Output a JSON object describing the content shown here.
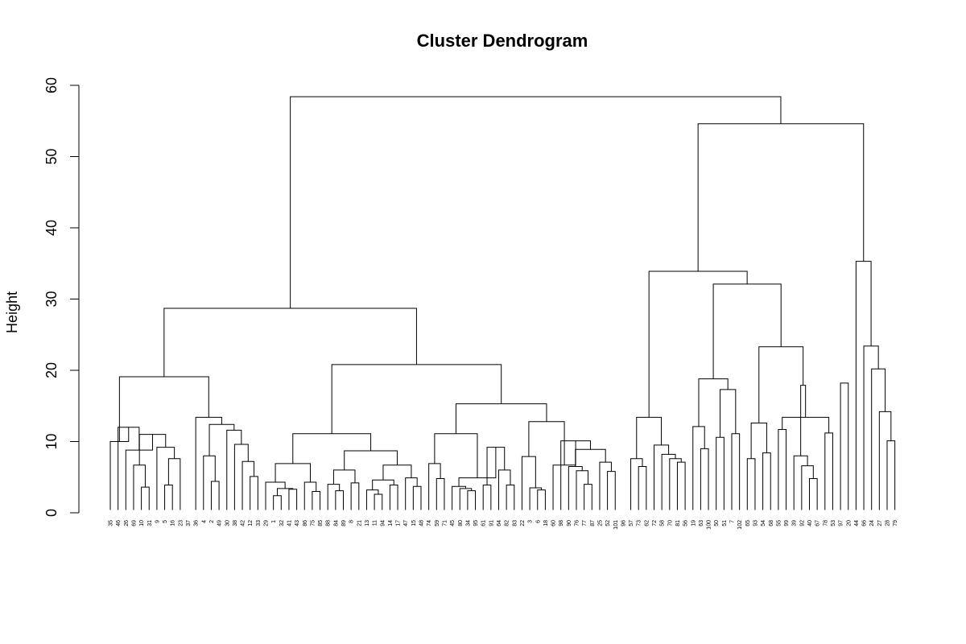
{
  "chart_data": {
    "type": "dendrogram",
    "title": "Cluster Dendrogram",
    "ylabel": "Height",
    "ylim": [
      0,
      60
    ],
    "yticks": [
      0,
      10,
      20,
      30,
      40,
      50,
      60
    ],
    "leaves": [
      "35",
      "46",
      "26",
      "69",
      "10",
      "31",
      "9",
      "5",
      "16",
      "23",
      "37",
      "36",
      "4",
      "2",
      "49",
      "30",
      "38",
      "42",
      "12",
      "33",
      "29",
      "1",
      "32",
      "41",
      "43",
      "86",
      "75",
      "85",
      "88",
      "84",
      "89",
      "8",
      "21",
      "13",
      "11",
      "94",
      "14",
      "17",
      "47",
      "15",
      "48",
      "74",
      "59",
      "71",
      "45",
      "80",
      "34",
      "95",
      "61",
      "91",
      "64",
      "82",
      "83",
      "22",
      "3",
      "6",
      "18",
      "60",
      "98",
      "90",
      "76",
      "77",
      "87",
      "25",
      "52",
      "101",
      "96",
      "57",
      "73",
      "62",
      "72",
      "58",
      "70",
      "81",
      "56",
      "19",
      "63",
      "100",
      "50",
      "51",
      "7",
      "102",
      "65",
      "93",
      "54",
      "68",
      "55",
      "99",
      "39",
      "92",
      "40",
      "67",
      "78",
      "53",
      "97",
      "20",
      "44",
      "66",
      "24",
      "27",
      "28",
      "79"
    ],
    "merges": [
      {
        "height": 3.6,
        "a": 4,
        "b": 5
      },
      {
        "height": 6.7,
        "a": 3,
        "b": "m0"
      },
      {
        "height": 3.9,
        "a": 7,
        "b": 8
      },
      {
        "height": 7.6,
        "a": "m2",
        "b": 9
      },
      {
        "height": 9.2,
        "a": 6,
        "b": "m3"
      },
      {
        "height": 11.0,
        "a": "m1",
        "b": "m4"
      },
      {
        "height": 8.8,
        "a": 2,
        "b": "m5"
      },
      {
        "height": 12.0,
        "a": 1,
        "b": "m6"
      },
      {
        "height": 10.0,
        "a": 0,
        "b": "m7"
      },
      {
        "height": 4.4,
        "a": 13,
        "b": 14
      },
      {
        "height": 8.0,
        "a": 12,
        "b": "m9"
      },
      {
        "height": 5.1,
        "a": 18,
        "b": 19
      },
      {
        "height": 7.2,
        "a": 17,
        "b": "m11"
      },
      {
        "height": 9.6,
        "a": 16,
        "b": "m12"
      },
      {
        "height": 11.6,
        "a": 15,
        "b": "m13"
      },
      {
        "height": 12.4,
        "a": "m10",
        "b": "m14"
      },
      {
        "height": 13.4,
        "a": 11,
        "b": "m15"
      },
      {
        "height": 19.1,
        "a": "m8",
        "b": "m16"
      },
      {
        "height": 2.4,
        "a": 21,
        "b": 22
      },
      {
        "height": 3.3,
        "a": 23,
        "b": 24
      },
      {
        "height": 3.4,
        "a": "m18",
        "b": "m19"
      },
      {
        "height": 4.3,
        "a": 20,
        "b": "m20"
      },
      {
        "height": 3.0,
        "a": 26,
        "b": 27
      },
      {
        "height": 4.3,
        "a": 25,
        "b": "m22"
      },
      {
        "height": 6.9,
        "a": "m21",
        "b": "m23"
      },
      {
        "height": 3.1,
        "a": 29,
        "b": 30
      },
      {
        "height": 4.0,
        "a": 28,
        "b": "m25"
      },
      {
        "height": 4.2,
        "a": 31,
        "b": 32
      },
      {
        "height": 6.0,
        "a": "m26",
        "b": "m27"
      },
      {
        "height": 2.6,
        "a": 34,
        "b": 35
      },
      {
        "height": 3.2,
        "a": 33,
        "b": "m29"
      },
      {
        "height": 3.9,
        "a": 36,
        "b": 37
      },
      {
        "height": 4.6,
        "a": "m30",
        "b": "m31"
      },
      {
        "height": 3.7,
        "a": 39,
        "b": 40
      },
      {
        "height": 4.9,
        "a": 38,
        "b": "m33"
      },
      {
        "height": 6.7,
        "a": "m32",
        "b": "m34"
      },
      {
        "height": 8.7,
        "a": "m28",
        "b": "m35"
      },
      {
        "height": 11.1,
        "a": "m24",
        "b": "m36"
      },
      {
        "height": 4.8,
        "a": 42,
        "b": 43
      },
      {
        "height": 6.9,
        "a": 41,
        "b": "m38"
      },
      {
        "height": 3.1,
        "a": 46,
        "b": 47
      },
      {
        "height": 3.4,
        "a": 45,
        "b": "m40"
      },
      {
        "height": 3.7,
        "a": 44,
        "b": "m41"
      },
      {
        "height": 3.9,
        "a": 48,
        "b": 49
      },
      {
        "height": 3.9,
        "a": 51,
        "b": 52
      },
      {
        "height": 6.0,
        "a": 50,
        "b": "m44"
      },
      {
        "height": 9.2,
        "a": "m43",
        "b": "m45"
      },
      {
        "height": 4.9,
        "a": "m42",
        "b": "m46"
      },
      {
        "height": 11.1,
        "a": "m39",
        "b": "m47"
      },
      {
        "height": 3.2,
        "a": 55,
        "b": 56
      },
      {
        "height": 3.5,
        "a": 54,
        "b": "m49"
      },
      {
        "height": 7.9,
        "a": 53,
        "b": "m50"
      },
      {
        "height": 4.0,
        "a": 61,
        "b": 62
      },
      {
        "height": 5.9,
        "a": 60,
        "b": "m52"
      },
      {
        "height": 6.5,
        "a": 59,
        "b": "m53"
      },
      {
        "height": 5.8,
        "a": 64,
        "b": 65
      },
      {
        "height": 7.1,
        "a": 63,
        "b": "m55"
      },
      {
        "height": 8.9,
        "a": "m54",
        "b": "m56"
      },
      {
        "height": 10.1,
        "a": 58,
        "b": "m57"
      },
      {
        "height": 6.7,
        "a": 57,
        "b": "m58"
      },
      {
        "height": 12.8,
        "a": "m51",
        "b": "m59"
      },
      {
        "height": 15.3,
        "a": "m48",
        "b": "m60"
      },
      {
        "height": 20.8,
        "a": "m37",
        "b": "m61"
      },
      {
        "height": 28.7,
        "a": "m17",
        "b": "m62"
      },
      {
        "height": 6.5,
        "a": 68,
        "b": 69
      },
      {
        "height": 7.6,
        "a": 67,
        "b": "m64"
      },
      {
        "height": 7.1,
        "a": 73,
        "b": 74
      },
      {
        "height": 7.6,
        "a": 72,
        "b": "m66"
      },
      {
        "height": 8.2,
        "a": 71,
        "b": "m67"
      },
      {
        "height": 9.5,
        "a": 70,
        "b": "m68"
      },
      {
        "height": 13.4,
        "a": "m65",
        "b": "m69"
      },
      {
        "height": 9.0,
        "a": 76,
        "b": 77
      },
      {
        "height": 12.1,
        "a": 75,
        "b": "m71"
      },
      {
        "height": 10.6,
        "a": 78,
        "b": 79
      },
      {
        "height": 11.1,
        "a": 80,
        "b": 81
      },
      {
        "height": 17.3,
        "a": "m73",
        "b": "m74"
      },
      {
        "height": 18.8,
        "a": "m72",
        "b": "m75"
      },
      {
        "height": 7.6,
        "a": 82,
        "b": 83
      },
      {
        "height": 8.4,
        "a": 84,
        "b": 85
      },
      {
        "height": 12.6,
        "a": "m77",
        "b": "m78"
      },
      {
        "height": 4.8,
        "a": 90,
        "b": 91
      },
      {
        "height": 6.6,
        "a": 89,
        "b": "m80"
      },
      {
        "height": 8.0,
        "a": 88,
        "b": "m81"
      },
      {
        "height": 11.7,
        "a": 86,
        "b": 87
      },
      {
        "height": 11.2,
        "a": 92,
        "b": 93
      },
      {
        "height": 13.4,
        "a": "m83",
        "b": "m84"
      },
      {
        "height": 17.9,
        "a": "m82",
        "b": "m85"
      },
      {
        "height": 23.3,
        "a": "m79",
        "b": "m86"
      },
      {
        "height": 32.1,
        "a": "m76",
        "b": "m87"
      },
      {
        "height": 33.9,
        "a": "m70",
        "b": "m88"
      },
      {
        "height": 10.1,
        "a": 100,
        "b": 101
      },
      {
        "height": 14.2,
        "a": 99,
        "b": "m90"
      },
      {
        "height": 20.2,
        "a": 98,
        "b": "m91"
      },
      {
        "height": 23.4,
        "a": 97,
        "b": "m92"
      },
      {
        "height": 35.3,
        "a": 96,
        "b": "m93"
      },
      {
        "height": 18.2,
        "a": 94,
        "b": 95
      },
      {
        "height": 54.6,
        "a": "m89",
        "b": "m94"
      },
      {
        "height": 58.4,
        "a": "m63",
        "b": "m96"
      }
    ]
  }
}
